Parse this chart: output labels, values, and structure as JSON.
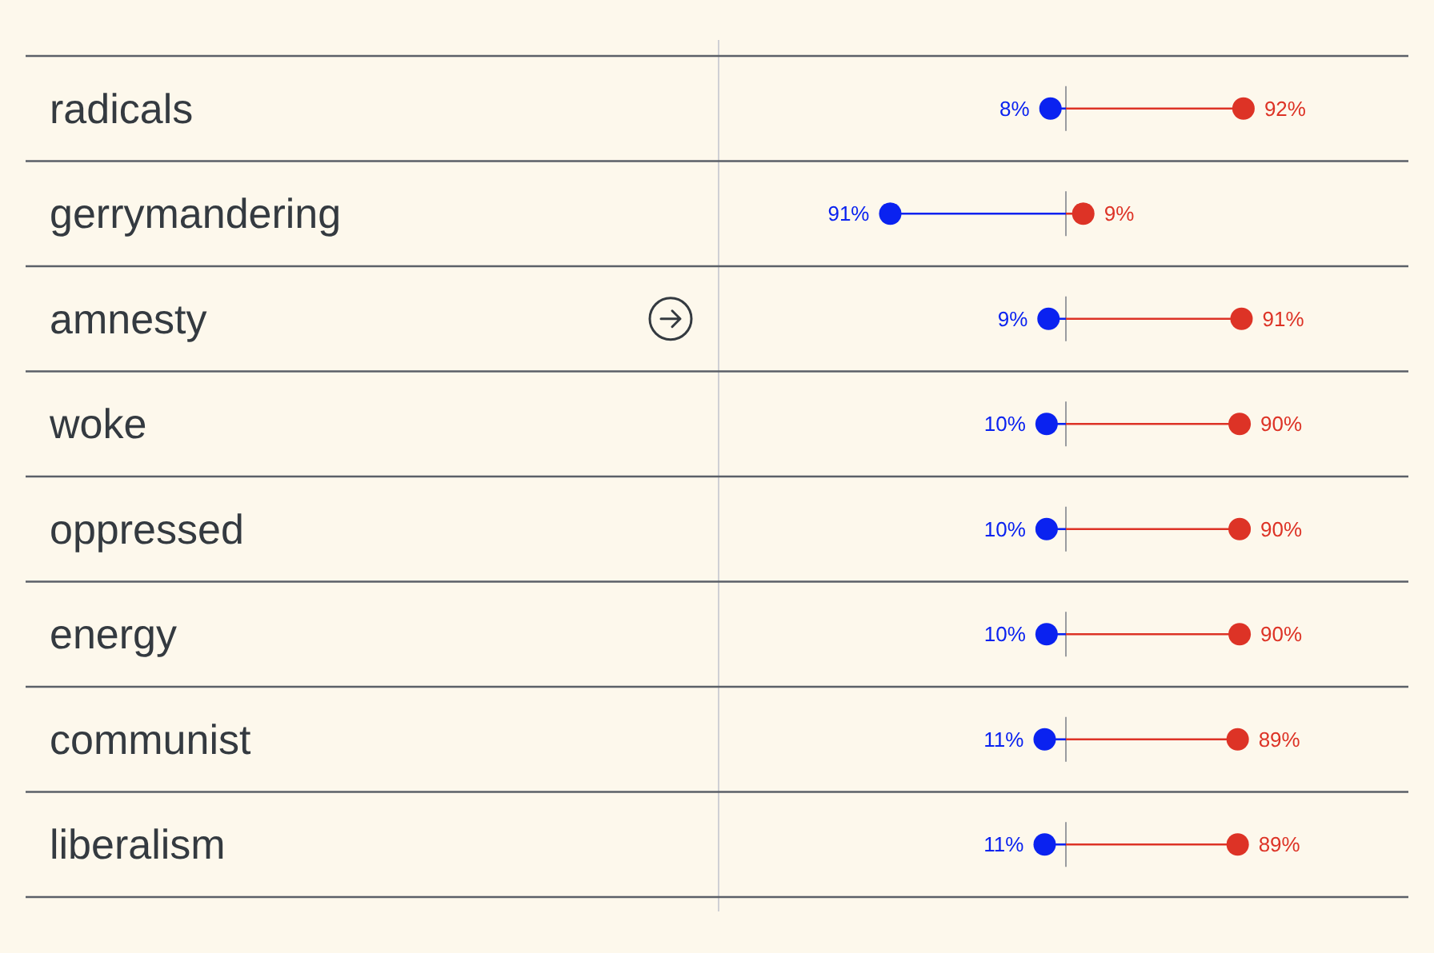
{
  "chart_data": {
    "type": "lollipop",
    "orientation": "horizontal",
    "categories": [
      "radicals",
      "gerrymandering",
      "amnesty",
      "woke",
      "oppressed",
      "energy",
      "communist",
      "liberalism"
    ],
    "series": [
      {
        "color": "#0a22f0",
        "values": [
          -8,
          -91,
          -9,
          -10,
          -10,
          -10,
          -11,
          -11
        ]
      },
      {
        "color": "#dd3326",
        "values": [
          92,
          9,
          91,
          90,
          90,
          90,
          89,
          89
        ],
        "value_labels": [
          "92%",
          "9%",
          "91%",
          "90%",
          "90%",
          "90%",
          "89%",
          "89%"
        ]
      }
    ],
    "annotations": [
      {
        "text": "8%",
        "x": -8,
        "y": "radicals"
      },
      {
        "text": "91%",
        "x": -91,
        "y": "gerrymandering"
      },
      {
        "text": "9%",
        "x": -9,
        "y": "amnesty"
      },
      {
        "text": "10%",
        "x": -10,
        "y": "woke"
      },
      {
        "text": "10%",
        "x": -10,
        "y": "oppressed"
      },
      {
        "text": "10%",
        "x": -10,
        "y": "energy"
      },
      {
        "text": "11%",
        "x": -11,
        "y": "communist"
      },
      {
        "text": "11%",
        "x": -11,
        "y": "liberalism"
      }
    ],
    "marker": "circle"
  }
}
